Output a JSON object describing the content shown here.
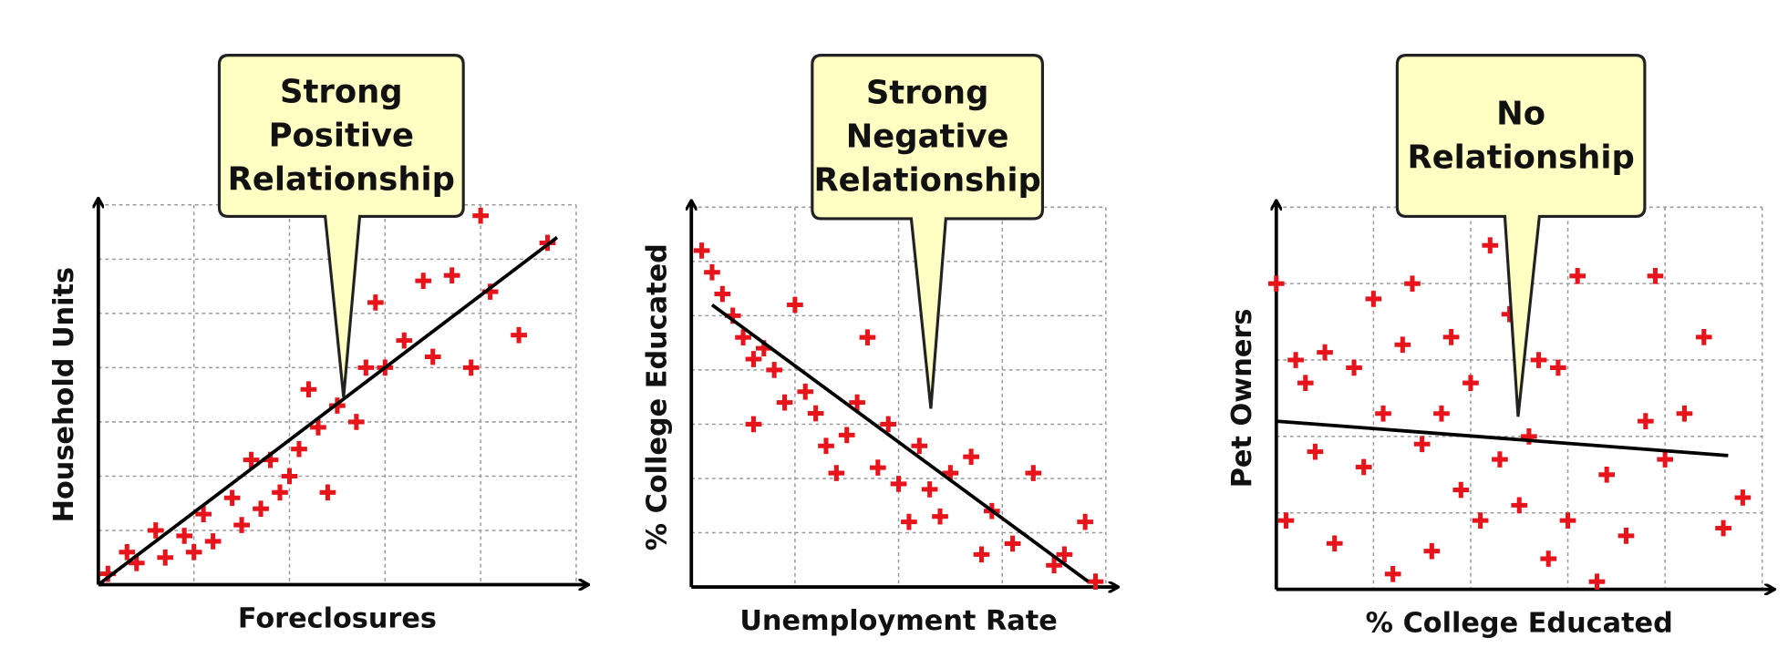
{
  "chart_data": [
    {
      "type": "scatter",
      "callout": [
        "Strong",
        "Positive",
        "Relationship"
      ],
      "x_label": "Foreclosures",
      "y_label": "Household Units",
      "color": "#e8141b",
      "grid": true,
      "xlim": [
        0,
        5
      ],
      "ylim": [
        0,
        7
      ],
      "xticks": [
        0,
        1,
        2,
        3,
        4,
        5
      ],
      "yticks": [
        0,
        1,
        2,
        3,
        4,
        5,
        6,
        7
      ],
      "x": [
        0.1,
        0.3,
        0.4,
        0.6,
        0.7,
        0.9,
        1.0,
        1.1,
        1.2,
        1.4,
        1.5,
        1.6,
        1.7,
        1.8,
        1.9,
        2.0,
        2.1,
        2.2,
        2.3,
        2.4,
        2.5,
        2.7,
        2.8,
        2.9,
        3.0,
        3.2,
        3.4,
        3.5,
        3.7,
        3.9,
        4.0,
        4.1,
        4.4,
        4.7
      ],
      "y": [
        0.2,
        0.6,
        0.4,
        1.0,
        0.5,
        0.9,
        0.6,
        1.3,
        0.8,
        1.6,
        1.1,
        2.3,
        1.4,
        2.3,
        1.7,
        2.0,
        2.5,
        3.6,
        2.9,
        1.7,
        3.3,
        3.0,
        4.0,
        5.2,
        4.0,
        4.5,
        5.6,
        4.2,
        5.7,
        4.0,
        6.8,
        5.4,
        4.6,
        6.3
      ],
      "trend": {
        "x": [
          0,
          4.8
        ],
        "y": [
          0,
          6.4
        ]
      }
    },
    {
      "type": "scatter",
      "callout": [
        "Strong",
        "Negative",
        "Relationship"
      ],
      "x_label": "Unemployment Rate",
      "y_label": "% College Educated",
      "color": "#e8141b",
      "grid": true,
      "xlim": [
        0,
        4
      ],
      "ylim": [
        0,
        7
      ],
      "xticks": [
        0,
        1,
        2,
        3,
        4
      ],
      "yticks": [
        0,
        1,
        2,
        3,
        4,
        5,
        6,
        7
      ],
      "x": [
        0.1,
        0.2,
        0.3,
        0.4,
        0.5,
        0.6,
        0.6,
        0.7,
        0.8,
        0.9,
        1.0,
        1.1,
        1.2,
        1.3,
        1.4,
        1.5,
        1.6,
        1.7,
        1.8,
        1.9,
        2.0,
        2.1,
        2.2,
        2.3,
        2.4,
        2.5,
        2.7,
        2.8,
        2.9,
        3.1,
        3.3,
        3.5,
        3.6,
        3.8,
        3.9
      ],
      "y": [
        6.2,
        5.8,
        5.4,
        5.0,
        4.6,
        4.2,
        3.0,
        4.4,
        4.0,
        3.4,
        5.2,
        3.6,
        3.2,
        2.6,
        2.1,
        2.8,
        3.4,
        4.6,
        2.2,
        3.0,
        1.9,
        1.2,
        2.6,
        1.8,
        1.3,
        2.1,
        2.4,
        0.6,
        1.4,
        0.8,
        2.1,
        0.4,
        0.6,
        1.2,
        0.1
      ],
      "trend": {
        "x": [
          0.2,
          3.83
        ],
        "y": [
          5.2,
          0.1
        ]
      }
    },
    {
      "type": "scatter",
      "callout": [
        "No",
        "Relationship"
      ],
      "x_label": "% College Educated",
      "y_label": "Pet Owners",
      "color": "#e8141b",
      "grid": true,
      "xlim": [
        0,
        5
      ],
      "ylim": [
        0,
        5
      ],
      "xticks": [
        0,
        1,
        2,
        3,
        4,
        5
      ],
      "yticks": [
        0,
        1,
        2,
        3,
        4,
        5
      ],
      "x": [
        0.0,
        0.1,
        0.2,
        0.3,
        0.4,
        0.5,
        0.6,
        0.8,
        0.9,
        1.0,
        1.1,
        1.2,
        1.3,
        1.4,
        1.5,
        1.6,
        1.7,
        1.8,
        1.9,
        2.0,
        2.1,
        2.2,
        2.3,
        2.4,
        2.5,
        2.6,
        2.7,
        2.8,
        2.9,
        3.0,
        3.1,
        3.3,
        3.4,
        3.6,
        3.8,
        3.9,
        4.0,
        4.2,
        4.4,
        4.6,
        4.8
      ],
      "y": [
        4.0,
        0.9,
        3.0,
        2.7,
        1.8,
        3.1,
        0.6,
        2.9,
        1.6,
        3.8,
        2.3,
        0.2,
        3.2,
        4.0,
        1.9,
        0.5,
        2.3,
        3.3,
        1.3,
        2.7,
        0.9,
        4.5,
        1.7,
        3.6,
        1.1,
        2.0,
        3.0,
        0.4,
        2.9,
        0.9,
        4.1,
        0.1,
        1.5,
        0.7,
        2.2,
        4.1,
        1.7,
        2.3,
        3.3,
        0.8,
        1.2
      ],
      "trend": {
        "x": [
          0,
          4.65
        ],
        "y": [
          2.2,
          1.75
        ]
      }
    }
  ]
}
